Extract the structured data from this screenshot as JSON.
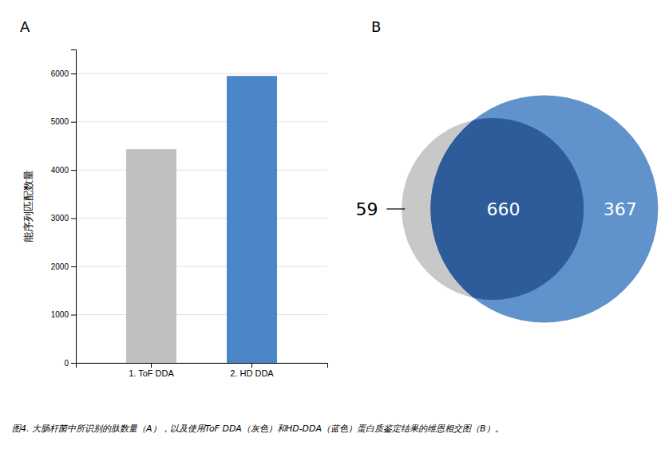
{
  "chart_data": [
    {
      "type": "bar",
      "title": "A",
      "categories": [
        "1. ToF DDA",
        "2. HD DDA"
      ],
      "values": [
        4430,
        5950
      ],
      "colors": [
        "#c0c0c0",
        "#4a86c8"
      ],
      "ylabel": "能序列匹配数量",
      "ylim": [
        0,
        6500
      ],
      "yticks": [
        0,
        1000,
        2000,
        3000,
        4000,
        5000,
        6000
      ],
      "grid": true,
      "annotations": [
        "图4. 大肠杆菌中所识别的肽数量（A），以及使用ToF DDA（灰色）和HD-DDA（蓝色）蛋白质鉴定结果的维恩相交图（B）。"
      ]
    },
    {
      "type": "venn",
      "title": "B",
      "values": [
        59,
        660,
        367
      ],
      "colors": [
        "#c8c8c8",
        "#2e5b9a",
        "#4f86c6"
      ],
      "data_labels": true
    }
  ]
}
